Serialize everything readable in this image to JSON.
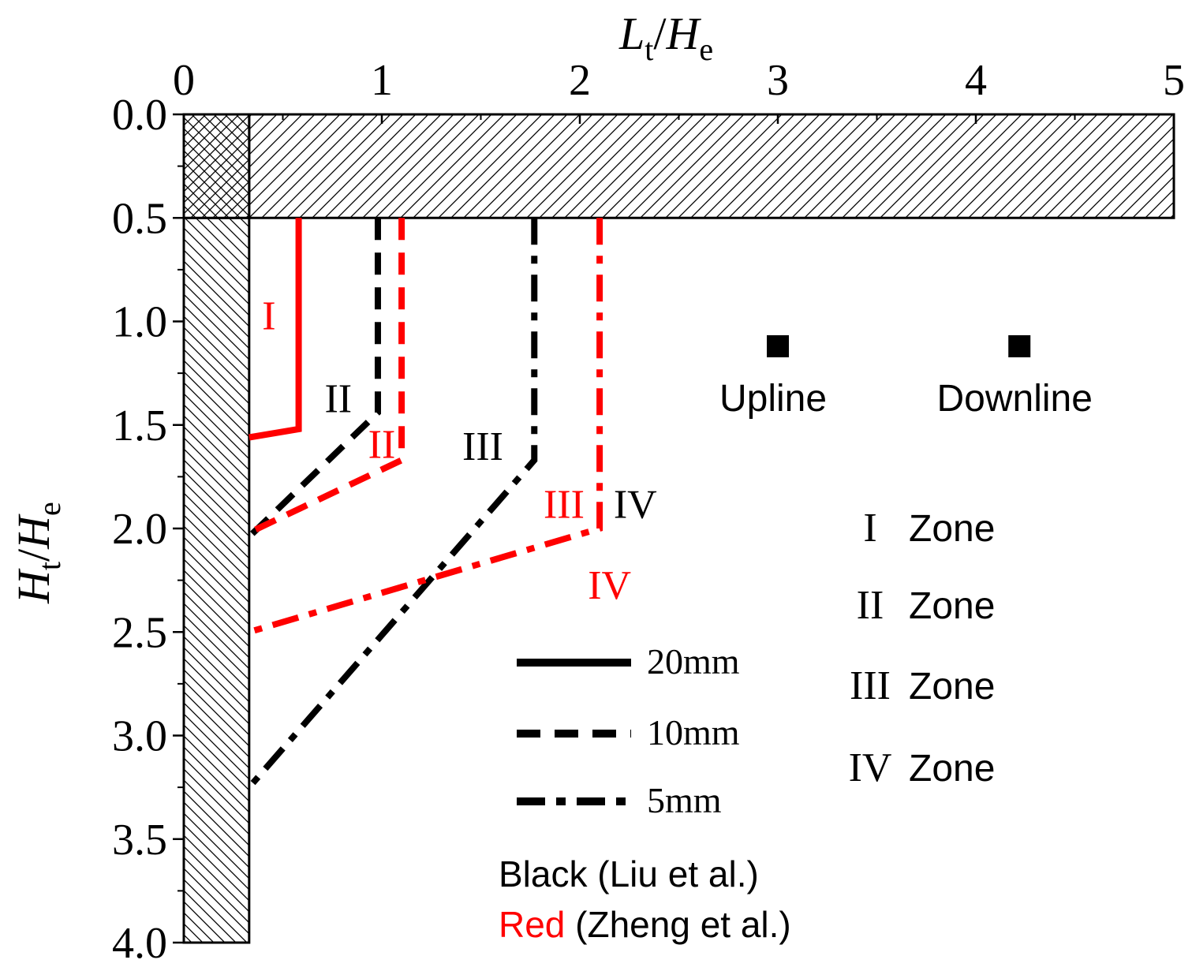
{
  "chart_data": {
    "type": "line",
    "xlabel": "Lt/He",
    "ylabel": "Ht/He",
    "xlim": [
      0,
      5
    ],
    "ylim": [
      4.0,
      0.0
    ],
    "y_axis_inverted": true,
    "axis_position": {
      "x": "top",
      "y": "left"
    },
    "x_ticks": [
      "0",
      "1",
      "2",
      "3",
      "4",
      "5"
    ],
    "y_ticks": [
      "0.0",
      "0.5",
      "1.0",
      "1.5",
      "2.0",
      "2.5",
      "3.0",
      "3.5",
      "4.0"
    ],
    "grid": false,
    "structures": {
      "slab": {
        "x": [
          0,
          5
        ],
        "y": [
          0,
          0.5
        ],
        "hatch": "diagonal"
      },
      "wall": {
        "x": [
          0,
          0.33
        ],
        "y": [
          0,
          4.0
        ],
        "hatch": "diagonal"
      },
      "corner": {
        "x": [
          0,
          0.33
        ],
        "y": [
          0,
          0.5
        ],
        "hatch": "cross"
      }
    },
    "series": [
      {
        "group": "Red",
        "size": "20mm",
        "color": "#ff0000",
        "style": "solid",
        "x": [
          0.58,
          0.58,
          0.33
        ],
        "y": [
          0.5,
          1.52,
          1.56
        ]
      },
      {
        "group": "Black",
        "size": "10mm",
        "color": "#000000",
        "style": "dash",
        "x": [
          0.98,
          0.98,
          0.33
        ],
        "y": [
          0.5,
          1.44,
          2.04
        ]
      },
      {
        "group": "Red",
        "size": "10mm",
        "color": "#ff0000",
        "style": "dash",
        "x": [
          1.1,
          1.1,
          0.33
        ],
        "y": [
          0.5,
          1.67,
          2.02
        ]
      },
      {
        "group": "Black",
        "size": "5mm",
        "color": "#000000",
        "style": "dashdot",
        "x": [
          1.77,
          1.77,
          0.33
        ],
        "y": [
          0.5,
          1.67,
          3.25
        ]
      },
      {
        "group": "Red",
        "size": "5mm",
        "color": "#ff0000",
        "style": "dashdot",
        "x": [
          2.1,
          2.1,
          0.33
        ],
        "y": [
          0.5,
          2.0,
          2.5
        ]
      }
    ],
    "zone_labels": [
      {
        "text": "I",
        "color": "#ff0000",
        "x": 0.43,
        "y": 0.97
      },
      {
        "text": "II",
        "color": "#000000",
        "x": 0.78,
        "y": 1.37
      },
      {
        "text": "II",
        "color": "#ff0000",
        "x": 1.0,
        "y": 1.59
      },
      {
        "text": "III",
        "color": "#000000",
        "x": 1.51,
        "y": 1.6
      },
      {
        "text": "III",
        "color": "#ff0000",
        "x": 1.92,
        "y": 1.88
      },
      {
        "text": "IV",
        "color": "#000000",
        "x": 2.28,
        "y": 1.88
      },
      {
        "text": "IV",
        "color": "#ff0000",
        "x": 2.15,
        "y": 2.27
      }
    ],
    "markers": [
      {
        "label": "Upline",
        "x": 3.0,
        "y": 1.12
      },
      {
        "label": "Downline",
        "x": 4.22,
        "y": 1.12
      }
    ],
    "legend": {
      "lines": [
        {
          "label": "20mm",
          "style": "solid"
        },
        {
          "label": "10mm",
          "style": "dash"
        },
        {
          "label": "5mm",
          "style": "dashdot"
        }
      ],
      "groups": [
        {
          "word": "Black",
          "rest": " (Liu et al.)",
          "color": "#000000"
        },
        {
          "word": "Red",
          "rest": " (Zheng et al.)",
          "color": "#ff0000"
        }
      ],
      "zones": [
        {
          "numeral": "I",
          "word": "Zone"
        },
        {
          "numeral": "II",
          "word": "Zone"
        },
        {
          "numeral": "III",
          "word": "Zone"
        },
        {
          "numeral": "IV",
          "word": "Zone"
        }
      ]
    }
  }
}
